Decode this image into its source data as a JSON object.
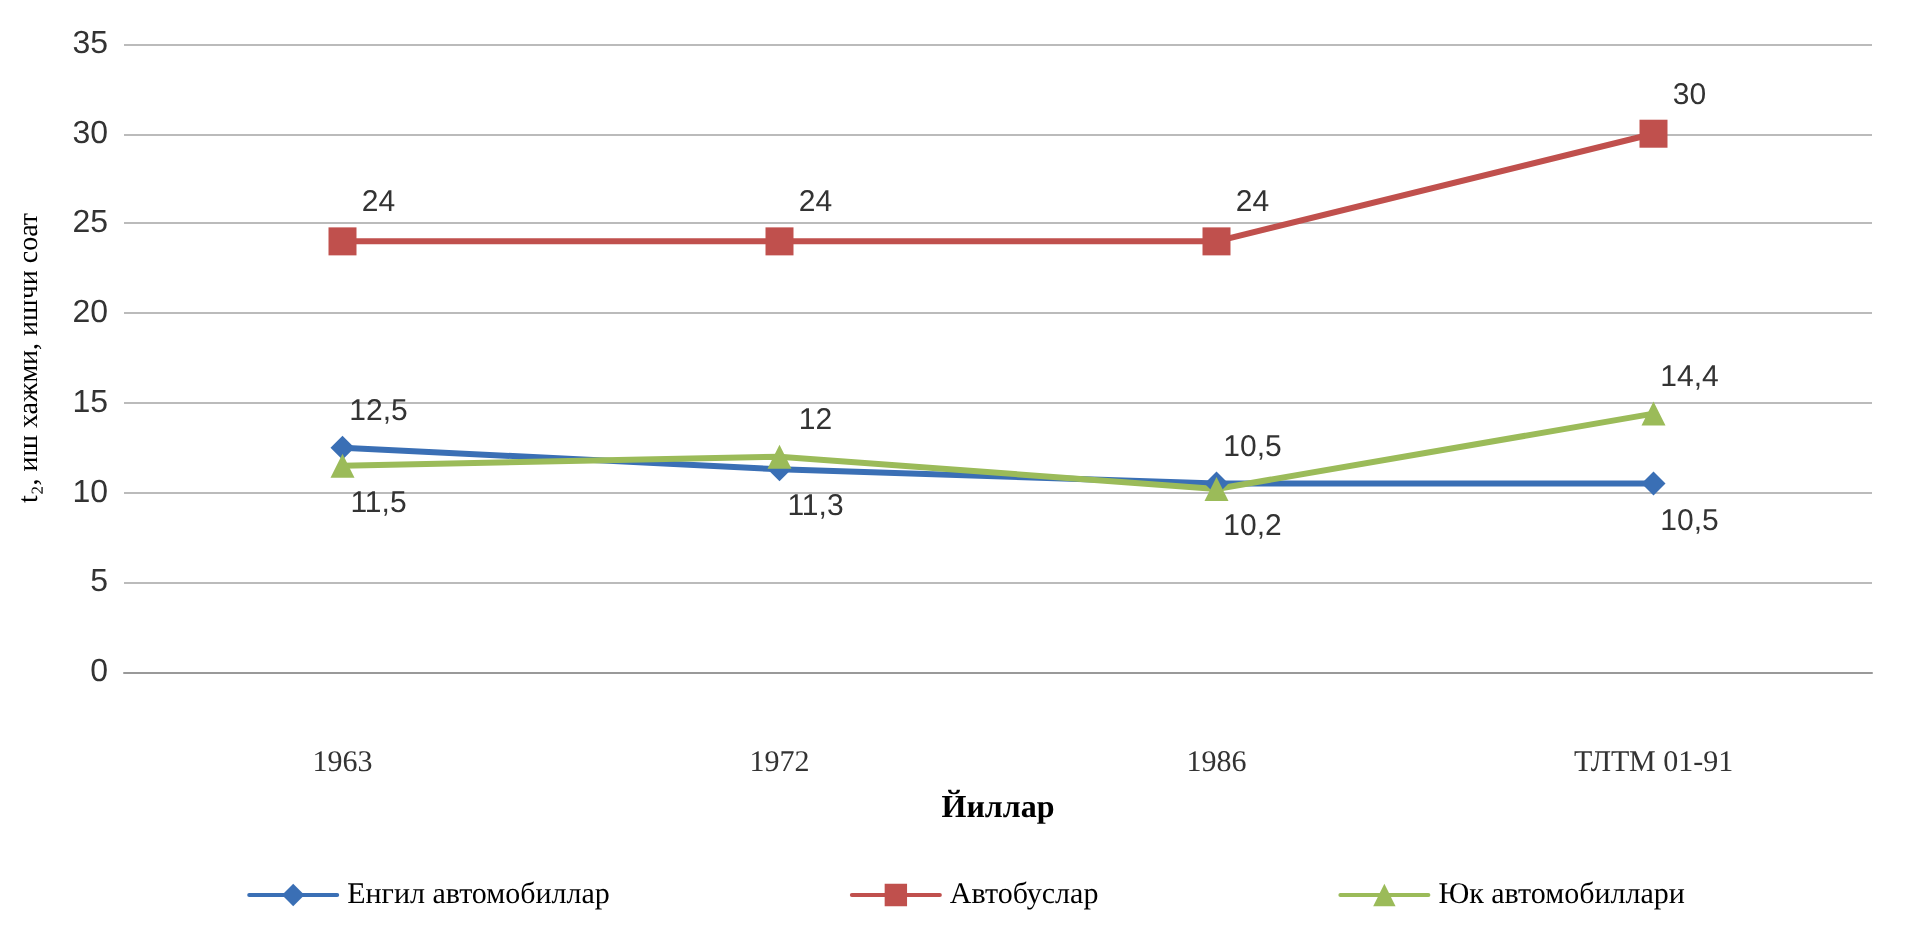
{
  "chart_data": {
    "type": "line",
    "xlabel": "Йиллар",
    "ylabel": "t₂, иш хажми, ишчи соат",
    "categories": [
      "1963",
      "1972",
      "1986",
      "ТЛТМ 01-91"
    ],
    "series": [
      {
        "name": "Енгил автомобиллар",
        "color": "#3a6fb5",
        "marker": "diamond",
        "values": [
          12.5,
          11.3,
          10.5,
          10.5
        ],
        "value_labels": [
          "12,5",
          "11,3",
          "10,5",
          "10,5"
        ]
      },
      {
        "name": "Автобуслар",
        "color": "#c0504d",
        "marker": "square",
        "values": [
          24,
          24,
          24,
          30
        ],
        "value_labels": [
          "24",
          "24",
          "24",
          "30"
        ]
      },
      {
        "name": "Юк автомобиллари",
        "color": "#9bbb59",
        "marker": "triangle",
        "values": [
          11.5,
          12,
          10.2,
          14.4
        ],
        "value_labels": [
          "11,5",
          "12",
          "10,2",
          "14,4"
        ]
      }
    ],
    "ylim": [
      0,
      35
    ],
    "yticks": [
      0,
      5,
      10,
      15,
      20,
      25,
      30,
      35
    ],
    "grid": "y",
    "legend": "bottom"
  }
}
